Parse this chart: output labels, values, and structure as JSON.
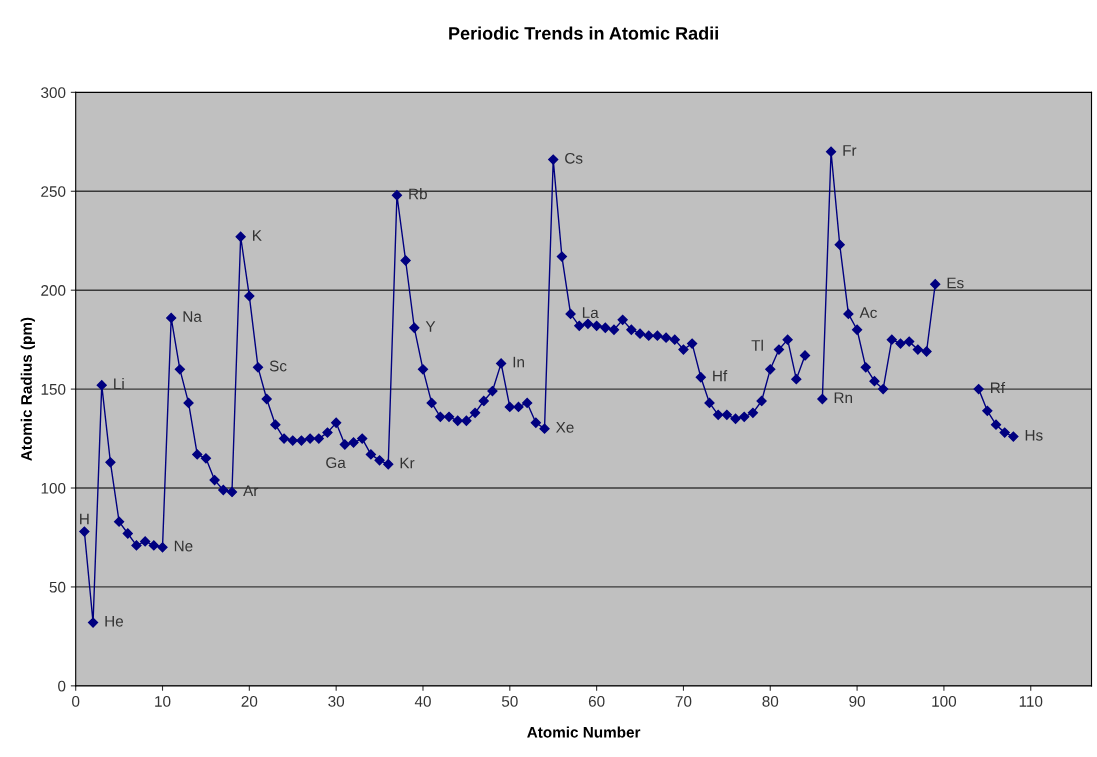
{
  "chart_data": {
    "type": "line",
    "title": "Periodic Trends in Atomic Radii",
    "xlabel": "Atomic Number",
    "ylabel": "Atomic Radius (pm)",
    "x": [
      1,
      2,
      3,
      4,
      5,
      6,
      7,
      8,
      9,
      10,
      11,
      12,
      13,
      14,
      15,
      16,
      17,
      18,
      19,
      20,
      21,
      22,
      23,
      24,
      25,
      26,
      27,
      28,
      29,
      30,
      31,
      32,
      33,
      34,
      35,
      36,
      37,
      38,
      39,
      40,
      41,
      42,
      43,
      44,
      45,
      46,
      47,
      48,
      49,
      50,
      51,
      52,
      53,
      54,
      55,
      56,
      57,
      58,
      59,
      60,
      61,
      62,
      63,
      64,
      65,
      66,
      67,
      68,
      69,
      70,
      71,
      72,
      73,
      74,
      75,
      76,
      77,
      78,
      79,
      80,
      81,
      82,
      83,
      84,
      85,
      86,
      87,
      88,
      89,
      90,
      91,
      92,
      93,
      94,
      95,
      96,
      97,
      98,
      99,
      100,
      101,
      102,
      103,
      104,
      105,
      106,
      107,
      108
    ],
    "series": [
      {
        "color": "#000080",
        "values": [
          78,
          32,
          152,
          113,
          83,
          77,
          71,
          73,
          71,
          70,
          186,
          160,
          143,
          117,
          115,
          104,
          99,
          98,
          227,
          197,
          161,
          145,
          132,
          125,
          124,
          124,
          125,
          125,
          128,
          133,
          122,
          123,
          125,
          117,
          114,
          112,
          248,
          215,
          181,
          160,
          143,
          136,
          136,
          134,
          134,
          138,
          144,
          149,
          163,
          141,
          141,
          143,
          133,
          130,
          266,
          217,
          188,
          182,
          183,
          182,
          181,
          180,
          185,
          180,
          178,
          177,
          177,
          176,
          175,
          170,
          173,
          156,
          143,
          137,
          137,
          135,
          136,
          138,
          144,
          160,
          170,
          175,
          155,
          167,
          null,
          145,
          270,
          223,
          188,
          180,
          161,
          154,
          150,
          175,
          173,
          174,
          170,
          169,
          203,
          null,
          null,
          null,
          null,
          150,
          139,
          132,
          128,
          126
        ]
      }
    ],
    "annotations": [
      {
        "text": "H",
        "x": 1,
        "y": 78
      },
      {
        "text": "He",
        "x": 2,
        "y": 32
      },
      {
        "text": "Li",
        "x": 3,
        "y": 152
      },
      {
        "text": "Ne",
        "x": 10,
        "y": 70
      },
      {
        "text": "Na",
        "x": 11,
        "y": 186
      },
      {
        "text": "Ar",
        "x": 18,
        "y": 98
      },
      {
        "text": "K",
        "x": 19,
        "y": 227
      },
      {
        "text": "Sc",
        "x": 21,
        "y": 161
      },
      {
        "text": "Ga",
        "x": 31,
        "y": 122
      },
      {
        "text": "Kr",
        "x": 36,
        "y": 112
      },
      {
        "text": "Rb",
        "x": 37,
        "y": 248
      },
      {
        "text": "Y",
        "x": 39,
        "y": 181
      },
      {
        "text": "In",
        "x": 49,
        "y": 163
      },
      {
        "text": "Xe",
        "x": 54,
        "y": 130
      },
      {
        "text": "Cs",
        "x": 55,
        "y": 266
      },
      {
        "text": "La",
        "x": 57,
        "y": 188
      },
      {
        "text": "Hf",
        "x": 72,
        "y": 156
      },
      {
        "text": "Tl",
        "x": 81,
        "y": 170
      },
      {
        "text": "Rn",
        "x": 86,
        "y": 145
      },
      {
        "text": "Fr",
        "x": 87,
        "y": 270
      },
      {
        "text": "Ac",
        "x": 89,
        "y": 188
      },
      {
        "text": "Es",
        "x": 99,
        "y": 203
      },
      {
        "text": "Rf",
        "x": 104,
        "y": 150
      },
      {
        "text": "Hs",
        "x": 108,
        "y": 126
      }
    ],
    "xlim": [
      0,
      117
    ],
    "xticks": [
      0,
      10,
      20,
      30,
      40,
      50,
      60,
      70,
      80,
      90,
      100,
      110
    ],
    "ylim": [
      0,
      300
    ],
    "yticks": [
      0,
      50,
      100,
      150,
      200,
      250,
      300
    ],
    "grid": "y",
    "marker": "diamond",
    "line_style": "solid",
    "legend": false
  }
}
